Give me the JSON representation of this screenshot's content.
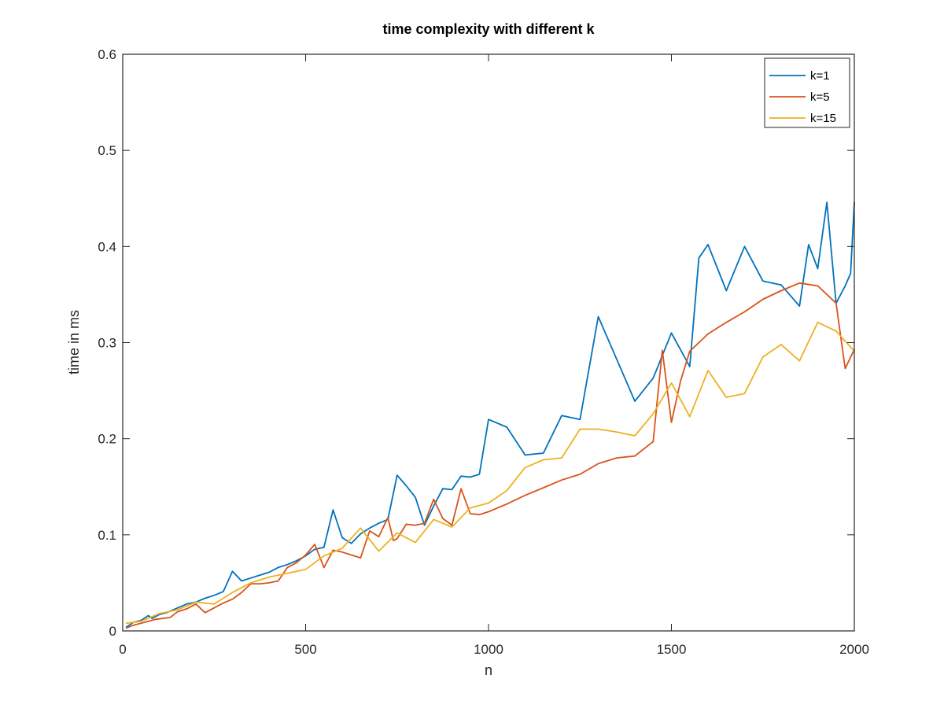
{
  "chart_data": {
    "type": "line",
    "title": "time complexity with different k",
    "xlabel": "n",
    "ylabel": "time in ms",
    "xlim": [
      0,
      2000
    ],
    "ylim": [
      0,
      0.6
    ],
    "xticks": [
      "0",
      "500",
      "1000",
      "1500",
      "2000"
    ],
    "yticks": [
      "0",
      "0.1",
      "0.2",
      "0.3",
      "0.4",
      "0.5",
      "0.6"
    ],
    "grid": false,
    "legend_position": "top-right",
    "series": [
      {
        "name": "k=1",
        "color": "#0072BD",
        "x": [
          10,
          30,
          50,
          70,
          80,
          100,
          120,
          150,
          175,
          200,
          225,
          250,
          275,
          300,
          325,
          350,
          375,
          400,
          425,
          450,
          475,
          500,
          525,
          550,
          575,
          600,
          625,
          650,
          675,
          700,
          725,
          750,
          775,
          800,
          825,
          850,
          875,
          900,
          925,
          950,
          975,
          1000,
          1050,
          1100,
          1150,
          1200,
          1250,
          1300,
          1350,
          1400,
          1450,
          1500,
          1550,
          1575,
          1600,
          1650,
          1700,
          1750,
          1800,
          1850,
          1875,
          1900,
          1925,
          1950,
          1975,
          1990,
          2000
        ],
        "y": [
          0.004,
          0.009,
          0.011,
          0.016,
          0.013,
          0.017,
          0.019,
          0.024,
          0.028,
          0.03,
          0.034,
          0.037,
          0.041,
          0.062,
          0.052,
          0.055,
          0.058,
          0.061,
          0.066,
          0.069,
          0.073,
          0.078,
          0.085,
          0.087,
          0.126,
          0.097,
          0.091,
          0.101,
          0.107,
          0.112,
          0.116,
          0.162,
          0.151,
          0.139,
          0.11,
          0.13,
          0.148,
          0.147,
          0.161,
          0.16,
          0.163,
          0.22,
          0.212,
          0.183,
          0.185,
          0.224,
          0.22,
          0.327,
          0.283,
          0.239,
          0.263,
          0.31,
          0.275,
          0.388,
          0.402,
          0.354,
          0.4,
          0.364,
          0.36,
          0.338,
          0.402,
          0.377,
          0.446,
          0.341,
          0.359,
          0.372,
          0.446
        ]
      },
      {
        "name": "k=5",
        "color": "#D95319",
        "x": [
          10,
          30,
          50,
          70,
          90,
          110,
          130,
          150,
          175,
          200,
          225,
          250,
          275,
          300,
          325,
          350,
          375,
          400,
          425,
          450,
          475,
          500,
          525,
          550,
          575,
          600,
          625,
          650,
          675,
          700,
          725,
          740,
          750,
          775,
          800,
          825,
          850,
          875,
          900,
          925,
          950,
          975,
          1000,
          1050,
          1100,
          1150,
          1200,
          1250,
          1300,
          1350,
          1400,
          1450,
          1475,
          1500,
          1525,
          1550,
          1600,
          1650,
          1700,
          1750,
          1800,
          1850,
          1900,
          1950,
          1975,
          2000
        ],
        "y": [
          0.003,
          0.006,
          0.008,
          0.01,
          0.012,
          0.013,
          0.014,
          0.02,
          0.023,
          0.028,
          0.019,
          0.024,
          0.029,
          0.033,
          0.04,
          0.049,
          0.049,
          0.05,
          0.052,
          0.066,
          0.071,
          0.079,
          0.09,
          0.066,
          0.084,
          0.082,
          0.079,
          0.076,
          0.104,
          0.098,
          0.118,
          0.094,
          0.096,
          0.111,
          0.11,
          0.112,
          0.137,
          0.117,
          0.11,
          0.148,
          0.122,
          0.121,
          0.124,
          0.132,
          0.141,
          0.149,
          0.157,
          0.163,
          0.174,
          0.18,
          0.182,
          0.197,
          0.292,
          0.217,
          0.26,
          0.291,
          0.309,
          0.321,
          0.332,
          0.345,
          0.354,
          0.362,
          0.359,
          0.341,
          0.273,
          0.293
        ]
      },
      {
        "name": "k=15",
        "color": "#EDB120",
        "x": [
          10,
          50,
          100,
          150,
          200,
          250,
          300,
          350,
          400,
          450,
          500,
          550,
          600,
          650,
          700,
          750,
          800,
          850,
          900,
          950,
          1000,
          1050,
          1100,
          1150,
          1200,
          1250,
          1300,
          1350,
          1400,
          1450,
          1500,
          1550,
          1600,
          1650,
          1700,
          1750,
          1800,
          1850,
          1900,
          1950,
          2000
        ],
        "y": [
          0.008,
          0.01,
          0.018,
          0.022,
          0.03,
          0.028,
          0.04,
          0.05,
          0.056,
          0.06,
          0.064,
          0.078,
          0.086,
          0.107,
          0.083,
          0.102,
          0.092,
          0.116,
          0.108,
          0.128,
          0.133,
          0.146,
          0.17,
          0.178,
          0.18,
          0.21,
          0.21,
          0.207,
          0.203,
          0.226,
          0.258,
          0.223,
          0.271,
          0.243,
          0.247,
          0.285,
          0.298,
          0.281,
          0.321,
          0.312,
          0.291
        ]
      }
    ]
  }
}
